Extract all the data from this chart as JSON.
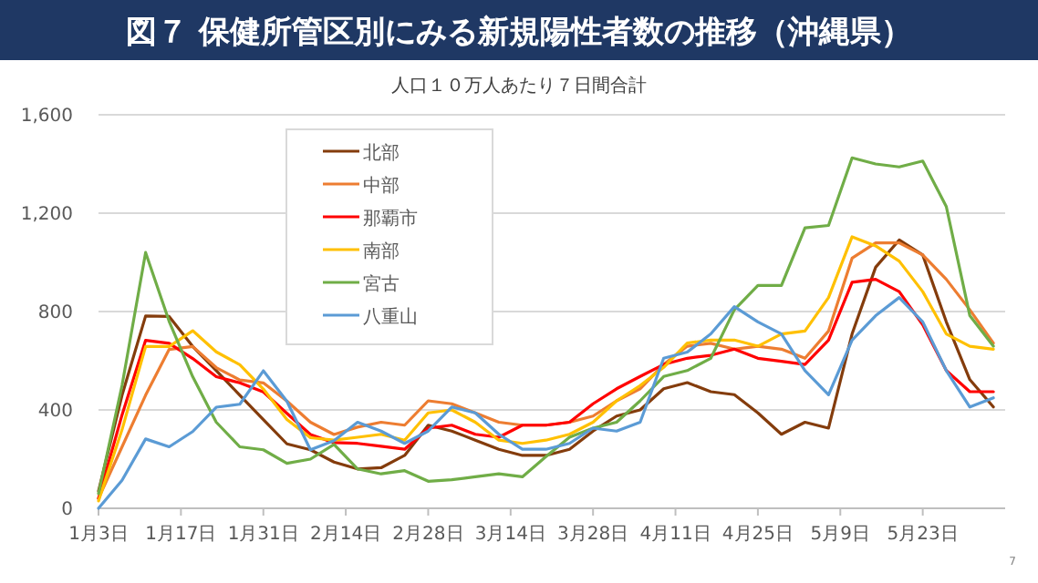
{
  "chart_data": {
    "type": "line",
    "title": "図７ 保健所管区別にみる新規陽性者数の推移（沖縄県）",
    "subtitle": "人口１０万人あたり７日間合計",
    "annotations": [
      "7"
    ],
    "x": [
      "--01-03",
      "--01-07",
      "--01-11",
      "--01-15",
      "--01-19",
      "--01-23",
      "--01-27",
      "--01-31",
      "--02-04",
      "--02-08",
      "--02-12",
      "--02-16",
      "--02-20",
      "--02-24",
      "--02-28",
      "--03-04",
      "--03-08",
      "--03-12",
      "--03-16",
      "--03-20",
      "--03-24",
      "--03-28",
      "--04-01",
      "--04-05",
      "--04-09",
      "--04-13",
      "--04-17",
      "--04-21",
      "--04-25",
      "--04-29",
      "--05-03",
      "--05-07",
      "--05-11",
      "--05-15",
      "--05-19",
      "--05-23",
      "--05-27",
      "--05-31",
      "--06-04"
    ],
    "xlim": [
      "--01-03",
      "--06-06"
    ],
    "xticks": [
      {
        "value": "--01-03",
        "label": "1月3日"
      },
      {
        "value": "--01-17",
        "label": "1月17日"
      },
      {
        "value": "--01-31",
        "label": "1月31日"
      },
      {
        "value": "--02-14",
        "label": "2月14日"
      },
      {
        "value": "--02-28",
        "label": "2月28日"
      },
      {
        "value": "--03-14",
        "label": "3月14日"
      },
      {
        "value": "--03-28",
        "label": "3月28日"
      },
      {
        "value": "--04-11",
        "label": "4月11日"
      },
      {
        "value": "--04-25",
        "label": "4月25日"
      },
      {
        "value": "--05-09",
        "label": "5月9日"
      },
      {
        "value": "--05-23",
        "label": "5月23日"
      }
    ],
    "ylim": [
      0,
      1600
    ],
    "yticks": [
      0,
      400,
      800,
      {
        "value": 1200,
        "label": "1,200"
      },
      {
        "value": 1600,
        "label": "1,600"
      }
    ],
    "grid": "y",
    "legend": "top left",
    "marker": "none",
    "line_style": "solid",
    "series": [
      {
        "name": "北部",
        "color": "#843c0c",
        "values": [
          70,
          460,
          782,
          780,
          658,
          560,
          460,
          361,
          262,
          238,
          188,
          160,
          165,
          215,
          338,
          314,
          277,
          240,
          215,
          215,
          240,
          314,
          375,
          400,
          486,
          511,
          474,
          462,
          388,
          301,
          350,
          326,
          709,
          980,
          1091,
          1030,
          758,
          523,
          412
        ]
      },
      {
        "name": "中部",
        "color": "#ed7d31",
        "values": [
          40,
          250,
          460,
          646,
          658,
          572,
          522,
          510,
          436,
          350,
          300,
          330,
          350,
          338,
          437,
          425,
          388,
          350,
          338,
          338,
          350,
          375,
          437,
          486,
          585,
          659,
          671,
          647,
          659,
          647,
          610,
          721,
          1017,
          1079,
          1079,
          1030,
          931,
          807,
          672
        ]
      },
      {
        "name": "那覇市",
        "color": "#ff0000",
        "values": [
          40,
          380,
          683,
          671,
          609,
          535,
          510,
          473,
          386,
          300,
          267,
          264,
          252,
          240,
          326,
          338,
          301,
          289,
          338,
          338,
          350,
          425,
          486,
          536,
          585,
          610,
          622,
          647,
          610,
          598,
          585,
          684,
          919,
          931,
          881,
          746,
          560,
          474,
          474
        ]
      },
      {
        "name": "南部",
        "color": "#ffc000",
        "values": [
          30,
          320,
          658,
          658,
          722,
          636,
          584,
          485,
          361,
          287,
          277,
          289,
          301,
          277,
          388,
          400,
          350,
          277,
          264,
          277,
          301,
          350,
          437,
          499,
          573,
          672,
          684,
          684,
          659,
          709,
          721,
          857,
          1104,
          1067,
          1005,
          881,
          709,
          659,
          647
        ]
      },
      {
        "name": "宮古",
        "color": "#70ad47",
        "values": [
          60,
          500,
          1040,
          760,
          535,
          350,
          250,
          238,
          183,
          200,
          260,
          160,
          140,
          153,
          110,
          116,
          128,
          140,
          128,
          210,
          289,
          326,
          350,
          437,
          536,
          560,
          610,
          807,
          906,
          906,
          1140,
          1150,
          1425,
          1400,
          1388,
          1412,
          1227,
          783,
          659
        ]
      },
      {
        "name": "八重山",
        "color": "#5b9bd5",
        "values": [
          0,
          114,
          282,
          250,
          312,
          411,
          423,
          559,
          435,
          238,
          275,
          350,
          314,
          264,
          314,
          412,
          388,
          301,
          240,
          240,
          264,
          326,
          314,
          350,
          610,
          635,
          709,
          820,
          758,
          709,
          560,
          462,
          684,
          783,
          857,
          758,
          560,
          412,
          449
        ]
      }
    ]
  }
}
